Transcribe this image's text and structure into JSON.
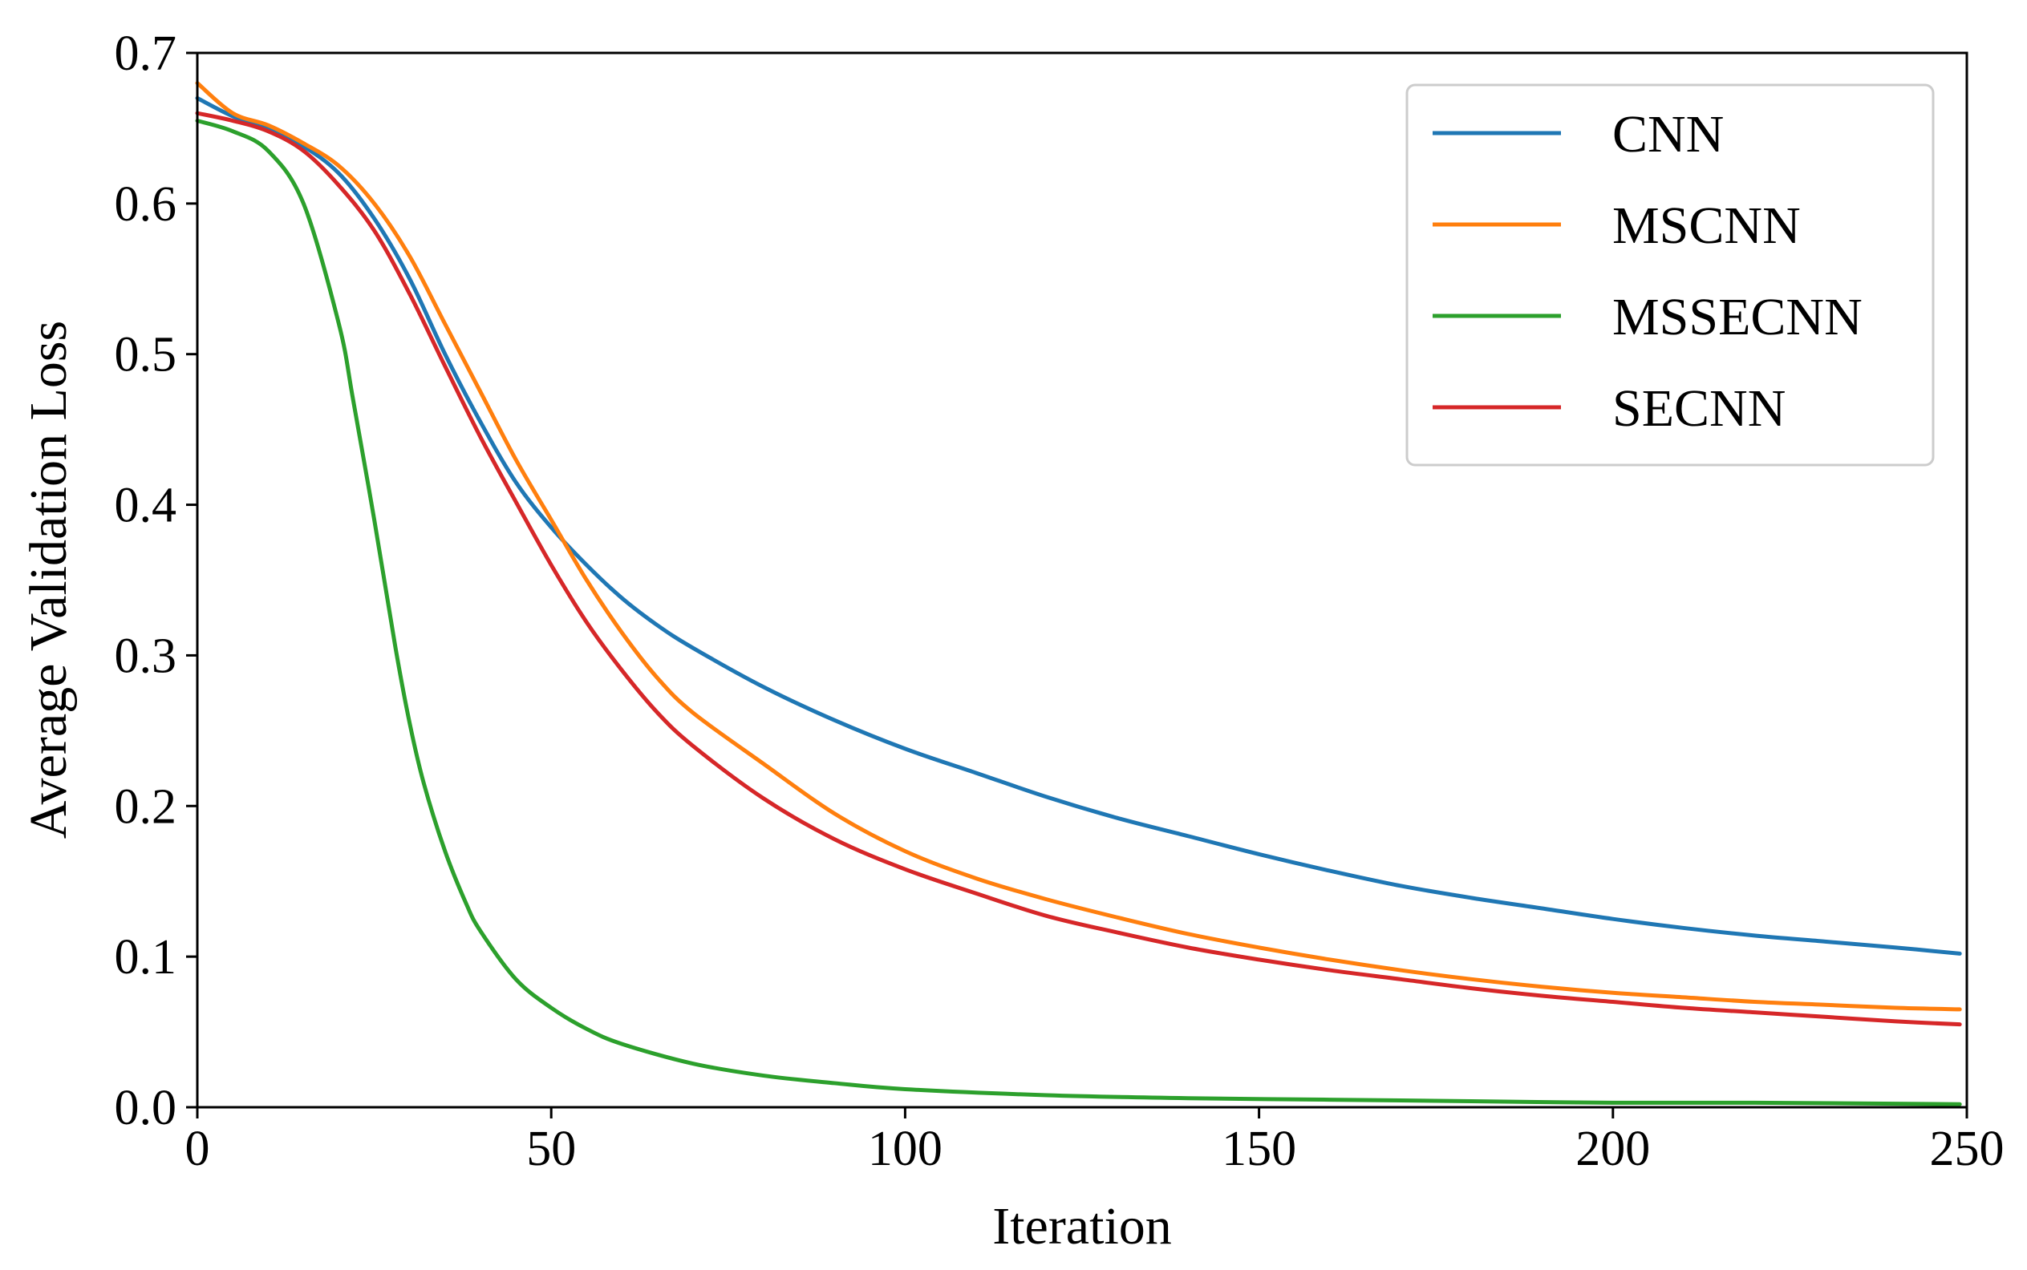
{
  "chart_data": {
    "type": "line",
    "title": "",
    "xlabel": "Iteration",
    "ylabel": "Average Validation Loss",
    "xlim": [
      0,
      250
    ],
    "ylim": [
      0,
      0.7
    ],
    "xticks": [
      0,
      50,
      100,
      150,
      200,
      250
    ],
    "xtick_labels": [
      "0",
      "50",
      "100",
      "150",
      "200",
      "250"
    ],
    "yticks": [
      0.0,
      0.1,
      0.2,
      0.3,
      0.4,
      0.5,
      0.6,
      0.7
    ],
    "ytick_labels": [
      "0.0",
      "0.1",
      "0.2",
      "0.3",
      "0.4",
      "0.5",
      "0.6",
      "0.7"
    ],
    "grid": false,
    "legend_position": "top-right",
    "series": [
      {
        "name": "CNN",
        "color": "#1f77b4",
        "x": [
          0,
          5,
          10,
          15,
          20,
          25,
          30,
          35,
          40,
          45,
          50,
          55,
          60,
          65,
          70,
          80,
          90,
          100,
          110,
          120,
          130,
          140,
          150,
          160,
          170,
          180,
          190,
          200,
          210,
          220,
          230,
          240,
          249
        ],
        "y": [
          0.67,
          0.658,
          0.65,
          0.638,
          0.62,
          0.59,
          0.55,
          0.5,
          0.455,
          0.415,
          0.385,
          0.36,
          0.338,
          0.32,
          0.305,
          0.279,
          0.257,
          0.238,
          0.222,
          0.206,
          0.192,
          0.18,
          0.168,
          0.157,
          0.147,
          0.139,
          0.132,
          0.125,
          0.119,
          0.114,
          0.11,
          0.106,
          0.102
        ]
      },
      {
        "name": "MSCNN",
        "color": "#ff7f0e",
        "x": [
          0,
          5,
          10,
          15,
          20,
          25,
          30,
          35,
          40,
          45,
          50,
          55,
          60,
          65,
          70,
          80,
          90,
          100,
          110,
          120,
          130,
          140,
          150,
          160,
          170,
          180,
          190,
          200,
          210,
          220,
          230,
          240,
          249
        ],
        "y": [
          0.68,
          0.66,
          0.652,
          0.64,
          0.625,
          0.6,
          0.565,
          0.52,
          0.475,
          0.43,
          0.39,
          0.35,
          0.315,
          0.285,
          0.262,
          0.228,
          0.195,
          0.17,
          0.152,
          0.138,
          0.126,
          0.115,
          0.106,
          0.098,
          0.091,
          0.085,
          0.08,
          0.076,
          0.073,
          0.07,
          0.068,
          0.066,
          0.065
        ]
      },
      {
        "name": "MSSECNN",
        "color": "#2ca02c",
        "x": [
          0,
          5,
          10,
          15,
          20,
          22,
          25,
          28,
          30,
          32,
          35,
          38,
          40,
          45,
          50,
          55,
          60,
          70,
          80,
          90,
          100,
          120,
          140,
          160,
          180,
          200,
          220,
          249
        ],
        "y": [
          0.655,
          0.648,
          0.635,
          0.6,
          0.52,
          0.47,
          0.39,
          0.305,
          0.255,
          0.215,
          0.17,
          0.135,
          0.117,
          0.085,
          0.066,
          0.052,
          0.042,
          0.029,
          0.021,
          0.016,
          0.012,
          0.008,
          0.006,
          0.005,
          0.004,
          0.003,
          0.003,
          0.002
        ]
      },
      {
        "name": "SECNN",
        "color": "#d62728",
        "x": [
          0,
          5,
          10,
          15,
          20,
          25,
          30,
          35,
          40,
          45,
          50,
          55,
          60,
          65,
          70,
          80,
          90,
          100,
          110,
          120,
          130,
          140,
          150,
          160,
          170,
          180,
          190,
          200,
          210,
          220,
          230,
          240,
          249
        ],
        "y": [
          0.66,
          0.655,
          0.648,
          0.635,
          0.612,
          0.582,
          0.54,
          0.492,
          0.445,
          0.402,
          0.36,
          0.322,
          0.29,
          0.262,
          0.24,
          0.205,
          0.178,
          0.158,
          0.142,
          0.127,
          0.116,
          0.106,
          0.098,
          0.091,
          0.085,
          0.079,
          0.074,
          0.07,
          0.066,
          0.063,
          0.06,
          0.057,
          0.055
        ]
      }
    ]
  }
}
